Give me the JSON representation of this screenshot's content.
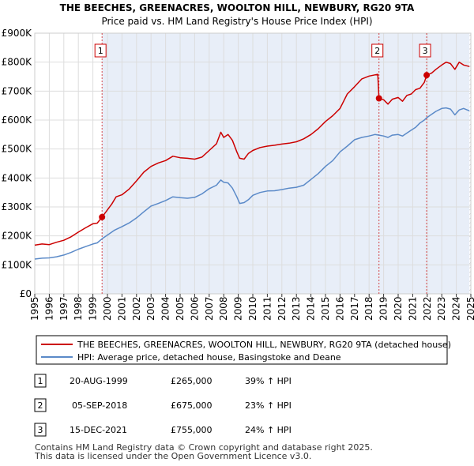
{
  "chart_data": {
    "type": "line",
    "title": "THE BEECHES, GREENACRES, WOOLTON HILL, NEWBURY, RG20 9TA",
    "subtitle": "Price paid vs. HM Land Registry's House Price Index (HPI)",
    "xlabel": "",
    "ylabel": "",
    "xlim": [
      1995,
      2025
    ],
    "ylim": [
      0,
      900000
    ],
    "y_ticks": [
      {
        "value": 0,
        "label": "£0"
      },
      {
        "value": 100000,
        "label": "£100K"
      },
      {
        "value": 200000,
        "label": "£200K"
      },
      {
        "value": 300000,
        "label": "£300K"
      },
      {
        "value": 400000,
        "label": "£400K"
      },
      {
        "value": 500000,
        "label": "£500K"
      },
      {
        "value": 600000,
        "label": "£600K"
      },
      {
        "value": 700000,
        "label": "£700K"
      },
      {
        "value": 800000,
        "label": "£800K"
      },
      {
        "value": 900000,
        "label": "£900K"
      }
    ],
    "x_ticks": [
      "1995",
      "1996",
      "1997",
      "1998",
      "1999",
      "2000",
      "2001",
      "2002",
      "2003",
      "2004",
      "2005",
      "2006",
      "2007",
      "2008",
      "2009",
      "2010",
      "2011",
      "2012",
      "2013",
      "2014",
      "2015",
      "2016",
      "2017",
      "2018",
      "2019",
      "2020",
      "2021",
      "2022",
      "2023",
      "2024",
      "2025"
    ],
    "series": [
      {
        "name": "THE BEECHES, GREENACRES, WOOLTON HILL, NEWBURY, RG20 9TA (detached house)",
        "color": "#cc0000",
        "points": [
          [
            1995.0,
            168000
          ],
          [
            1995.5,
            172000
          ],
          [
            1996.0,
            170000
          ],
          [
            1996.5,
            178000
          ],
          [
            1997.0,
            185000
          ],
          [
            1997.5,
            197000
          ],
          [
            1998.0,
            213000
          ],
          [
            1998.5,
            228000
          ],
          [
            1999.0,
            242000
          ],
          [
            1999.3,
            244000
          ],
          [
            1999.63,
            265000
          ],
          [
            2000.0,
            290000
          ],
          [
            2000.3,
            310000
          ],
          [
            2000.6,
            335000
          ],
          [
            2001.0,
            342000
          ],
          [
            2001.5,
            362000
          ],
          [
            2002.0,
            390000
          ],
          [
            2002.5,
            420000
          ],
          [
            2003.0,
            440000
          ],
          [
            2003.5,
            452000
          ],
          [
            2004.0,
            460000
          ],
          [
            2004.5,
            475000
          ],
          [
            2005.0,
            470000
          ],
          [
            2005.5,
            468000
          ],
          [
            2006.0,
            465000
          ],
          [
            2006.5,
            472000
          ],
          [
            2007.0,
            495000
          ],
          [
            2007.5,
            518000
          ],
          [
            2007.8,
            558000
          ],
          [
            2008.0,
            540000
          ],
          [
            2008.3,
            550000
          ],
          [
            2008.6,
            530000
          ],
          [
            2008.9,
            490000
          ],
          [
            2009.1,
            468000
          ],
          [
            2009.4,
            465000
          ],
          [
            2009.7,
            485000
          ],
          [
            2010.0,
            495000
          ],
          [
            2010.5,
            505000
          ],
          [
            2011.0,
            510000
          ],
          [
            2011.5,
            513000
          ],
          [
            2012.0,
            517000
          ],
          [
            2012.5,
            520000
          ],
          [
            2013.0,
            525000
          ],
          [
            2013.5,
            535000
          ],
          [
            2014.0,
            550000
          ],
          [
            2014.5,
            570000
          ],
          [
            2015.0,
            595000
          ],
          [
            2015.5,
            615000
          ],
          [
            2016.0,
            640000
          ],
          [
            2016.5,
            690000
          ],
          [
            2017.0,
            715000
          ],
          [
            2017.5,
            742000
          ],
          [
            2018.0,
            752000
          ],
          [
            2018.4,
            756000
          ],
          [
            2018.6,
            758000
          ],
          [
            2018.68,
            675000
          ],
          [
            2019.0,
            670000
          ],
          [
            2019.3,
            655000
          ],
          [
            2019.6,
            672000
          ],
          [
            2020.0,
            678000
          ],
          [
            2020.3,
            665000
          ],
          [
            2020.6,
            685000
          ],
          [
            2020.9,
            690000
          ],
          [
            2021.2,
            705000
          ],
          [
            2021.5,
            710000
          ],
          [
            2021.8,
            730000
          ],
          [
            2021.96,
            755000
          ],
          [
            2022.3,
            762000
          ],
          [
            2022.6,
            775000
          ],
          [
            2023.0,
            790000
          ],
          [
            2023.3,
            800000
          ],
          [
            2023.6,
            795000
          ],
          [
            2023.9,
            775000
          ],
          [
            2024.2,
            800000
          ],
          [
            2024.5,
            790000
          ],
          [
            2024.9,
            785000
          ]
        ]
      },
      {
        "name": "HPI: Average price, detached house, Basingstoke and Deane",
        "color": "#5b8ac8",
        "points": [
          [
            1995.0,
            120000
          ],
          [
            1995.5,
            123000
          ],
          [
            1996.0,
            124000
          ],
          [
            1996.5,
            128000
          ],
          [
            1997.0,
            134000
          ],
          [
            1997.5,
            143000
          ],
          [
            1998.0,
            154000
          ],
          [
            1998.5,
            163000
          ],
          [
            1999.0,
            172000
          ],
          [
            1999.3,
            176000
          ],
          [
            1999.63,
            190000
          ],
          [
            2000.0,
            203000
          ],
          [
            2000.5,
            220000
          ],
          [
            2001.0,
            232000
          ],
          [
            2001.5,
            245000
          ],
          [
            2002.0,
            262000
          ],
          [
            2002.5,
            283000
          ],
          [
            2003.0,
            303000
          ],
          [
            2003.5,
            312000
          ],
          [
            2004.0,
            322000
          ],
          [
            2004.5,
            335000
          ],
          [
            2005.0,
            332000
          ],
          [
            2005.5,
            330000
          ],
          [
            2006.0,
            333000
          ],
          [
            2006.5,
            345000
          ],
          [
            2007.0,
            363000
          ],
          [
            2007.5,
            375000
          ],
          [
            2007.8,
            393000
          ],
          [
            2008.0,
            385000
          ],
          [
            2008.3,
            383000
          ],
          [
            2008.6,
            365000
          ],
          [
            2008.9,
            335000
          ],
          [
            2009.1,
            312000
          ],
          [
            2009.4,
            315000
          ],
          [
            2009.7,
            325000
          ],
          [
            2010.0,
            340000
          ],
          [
            2010.5,
            350000
          ],
          [
            2011.0,
            355000
          ],
          [
            2011.5,
            356000
          ],
          [
            2012.0,
            360000
          ],
          [
            2012.5,
            365000
          ],
          [
            2013.0,
            368000
          ],
          [
            2013.5,
            375000
          ],
          [
            2014.0,
            395000
          ],
          [
            2014.5,
            415000
          ],
          [
            2015.0,
            440000
          ],
          [
            2015.5,
            460000
          ],
          [
            2016.0,
            490000
          ],
          [
            2016.5,
            510000
          ],
          [
            2017.0,
            532000
          ],
          [
            2017.5,
            540000
          ],
          [
            2018.0,
            545000
          ],
          [
            2018.4,
            550000
          ],
          [
            2018.68,
            548000
          ],
          [
            2019.0,
            545000
          ],
          [
            2019.3,
            540000
          ],
          [
            2019.6,
            548000
          ],
          [
            2020.0,
            550000
          ],
          [
            2020.3,
            545000
          ],
          [
            2020.6,
            555000
          ],
          [
            2020.9,
            565000
          ],
          [
            2021.2,
            575000
          ],
          [
            2021.5,
            590000
          ],
          [
            2021.8,
            600000
          ],
          [
            2021.96,
            608000
          ],
          [
            2022.3,
            620000
          ],
          [
            2022.6,
            630000
          ],
          [
            2023.0,
            640000
          ],
          [
            2023.3,
            642000
          ],
          [
            2023.6,
            638000
          ],
          [
            2023.9,
            618000
          ],
          [
            2024.2,
            635000
          ],
          [
            2024.5,
            640000
          ],
          [
            2024.9,
            632000
          ]
        ]
      }
    ],
    "sales": [
      {
        "label": "1",
        "x": 1999.63,
        "value": 265000
      },
      {
        "label": "2",
        "x": 2018.68,
        "value": 675000
      },
      {
        "label": "3",
        "x": 2021.96,
        "value": 755000
      }
    ],
    "shade_start": 1999.63,
    "hatch_from": 2024.9
  },
  "legend": {
    "property_label": "THE BEECHES, GREENACRES, WOOLTON HILL, NEWBURY, RG20 9TA (detached house)",
    "hpi_label": "HPI: Average price, detached house, Basingstoke and Deane"
  },
  "transactions": [
    {
      "num": "1",
      "date": "20-AUG-1999",
      "price": "£265,000",
      "change": "39% ↑ HPI"
    },
    {
      "num": "2",
      "date": "05-SEP-2018",
      "price": "£675,000",
      "change": "23% ↑ HPI"
    },
    {
      "num": "3",
      "date": "15-DEC-2021",
      "price": "£755,000",
      "change": "24% ↑ HPI"
    }
  ],
  "footer": {
    "line1": "Contains HM Land Registry data © Crown copyright and database right 2025.",
    "line2": "This data is licensed under the Open Government Licence v3.0."
  },
  "colors": {
    "property": "#cc0000",
    "hpi": "#5b8ac8",
    "shade": "#e8eef8",
    "grid": "#dddddd"
  }
}
